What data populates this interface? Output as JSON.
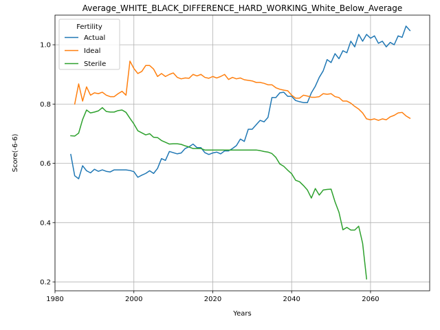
{
  "chart_data": {
    "type": "line",
    "title": "Average_WHITE_BLACK_DIFFERENCE_HARD_WORKING_White_Below_Average",
    "xlabel": "Years",
    "ylabel": "Score(-6-6)",
    "xlim": [
      1980,
      2075
    ],
    "ylim": [
      0.17,
      1.1
    ],
    "xticks": [
      1980,
      2000,
      2020,
      2040,
      2060
    ],
    "yticks": [
      0.2,
      0.4,
      0.6,
      0.8,
      1.0
    ],
    "xtick_labels": [
      "1980",
      "2000",
      "2020",
      "2040",
      "2060"
    ],
    "ytick_labels": [
      "0.2",
      "0.4",
      "0.6",
      "0.8",
      "1.0"
    ],
    "grid": true,
    "legend": {
      "title": "Fertility",
      "placement": "top-left"
    },
    "series": [
      {
        "name": "Actual",
        "color": "#1f77b4",
        "x": [
          1984,
          1985,
          1986,
          1987,
          1988,
          1989,
          1990,
          1991,
          1992,
          1993,
          1994,
          1995,
          1996,
          1997,
          1998,
          1999,
          2000,
          2001,
          2002,
          2003,
          2004,
          2005,
          2006,
          2007,
          2008,
          2009,
          2010,
          2011,
          2012,
          2013,
          2014,
          2015,
          2016,
          2017,
          2018,
          2019,
          2020,
          2021,
          2022,
          2023,
          2024,
          2025,
          2026,
          2027,
          2028,
          2029,
          2030,
          2031,
          2032,
          2033,
          2034,
          2035,
          2036,
          2037,
          2038,
          2039,
          2040,
          2041,
          2042,
          2043,
          2044,
          2045,
          2046,
          2047,
          2048,
          2049,
          2050,
          2051,
          2052,
          2053,
          2054,
          2055,
          2056,
          2057,
          2058,
          2059,
          2060,
          2061,
          2062,
          2063,
          2064,
          2065,
          2066,
          2067,
          2068,
          2069,
          2070
        ],
        "y": [
          0.63,
          0.558,
          0.548,
          0.592,
          0.575,
          0.568,
          0.58,
          0.573,
          0.578,
          0.573,
          0.571,
          0.578,
          0.578,
          0.578,
          0.578,
          0.576,
          0.572,
          0.553,
          0.56,
          0.566,
          0.575,
          0.566,
          0.583,
          0.616,
          0.61,
          0.64,
          0.636,
          0.632,
          0.635,
          0.65,
          0.656,
          0.665,
          0.653,
          0.653,
          0.636,
          0.63,
          0.635,
          0.638,
          0.632,
          0.642,
          0.642,
          0.65,
          0.66,
          0.682,
          0.674,
          0.715,
          0.715,
          0.73,
          0.745,
          0.74,
          0.755,
          0.822,
          0.822,
          0.838,
          0.84,
          0.826,
          0.826,
          0.812,
          0.808,
          0.805,
          0.805,
          0.838,
          0.86,
          0.89,
          0.912,
          0.95,
          0.94,
          0.97,
          0.953,
          0.98,
          0.973,
          1.012,
          0.993,
          1.035,
          1.012,
          1.035,
          1.022,
          1.03,
          1.005,
          1.012,
          0.993,
          1.008,
          1.0,
          1.03,
          1.025,
          1.063,
          1.048
        ]
      },
      {
        "name": "Ideal",
        "color": "#ff7f0e",
        "x": [
          1985,
          1986,
          1987,
          1988,
          1989,
          1990,
          1991,
          1992,
          1993,
          1994,
          1995,
          1996,
          1997,
          1998,
          1999,
          2000,
          2001,
          2002,
          2003,
          2004,
          2005,
          2006,
          2007,
          2008,
          2009,
          2010,
          2011,
          2012,
          2013,
          2014,
          2015,
          2016,
          2017,
          2018,
          2019,
          2020,
          2021,
          2022,
          2023,
          2024,
          2025,
          2026,
          2027,
          2028,
          2029,
          2030,
          2031,
          2032,
          2033,
          2034,
          2035,
          2036,
          2037,
          2038,
          2039,
          2040,
          2041,
          2042,
          2043,
          2044,
          2045,
          2046,
          2047,
          2048,
          2049,
          2050,
          2051,
          2052,
          2053,
          2054,
          2055,
          2056,
          2057,
          2058,
          2059,
          2060,
          2061,
          2062,
          2063,
          2064,
          2065,
          2066,
          2067,
          2068,
          2069,
          2070
        ],
        "y": [
          0.8,
          0.868,
          0.81,
          0.858,
          0.83,
          0.838,
          0.835,
          0.84,
          0.83,
          0.825,
          0.825,
          0.835,
          0.843,
          0.83,
          0.945,
          0.92,
          0.903,
          0.91,
          0.93,
          0.93,
          0.918,
          0.893,
          0.903,
          0.893,
          0.9,
          0.905,
          0.89,
          0.885,
          0.888,
          0.887,
          0.9,
          0.895,
          0.9,
          0.89,
          0.887,
          0.893,
          0.888,
          0.893,
          0.9,
          0.883,
          0.89,
          0.885,
          0.888,
          0.882,
          0.88,
          0.878,
          0.873,
          0.873,
          0.87,
          0.865,
          0.865,
          0.855,
          0.85,
          0.847,
          0.845,
          0.83,
          0.82,
          0.82,
          0.83,
          0.827,
          0.823,
          0.823,
          0.825,
          0.835,
          0.833,
          0.835,
          0.825,
          0.822,
          0.81,
          0.81,
          0.803,
          0.792,
          0.783,
          0.77,
          0.75,
          0.747,
          0.75,
          0.745,
          0.75,
          0.747,
          0.757,
          0.762,
          0.77,
          0.772,
          0.76,
          0.752
        ]
      },
      {
        "name": "Sterile",
        "color": "#2ca02c",
        "x": [
          1984,
          1985,
          1986,
          1987,
          1988,
          1989,
          1990,
          1991,
          1992,
          1993,
          1994,
          1995,
          1996,
          1997,
          1998,
          1999,
          2000,
          2001,
          2002,
          2003,
          2004,
          2005,
          2006,
          2007,
          2008,
          2009,
          2010,
          2011,
          2012,
          2013,
          2014,
          2015,
          2016,
          2017,
          2018,
          2019,
          2020,
          2021,
          2022,
          2023,
          2024,
          2025,
          2026,
          2027,
          2028,
          2029,
          2030,
          2031,
          2032,
          2033,
          2034,
          2035,
          2036,
          2037,
          2038,
          2039,
          2040,
          2041,
          2042,
          2043,
          2044,
          2045,
          2046,
          2047,
          2048,
          2049,
          2050,
          2051,
          2052,
          2053,
          2054,
          2055,
          2056,
          2057,
          2058,
          2059
        ],
        "y": [
          0.693,
          0.692,
          0.702,
          0.748,
          0.78,
          0.77,
          0.773,
          0.777,
          0.788,
          0.775,
          0.773,
          0.773,
          0.778,
          0.78,
          0.772,
          0.752,
          0.733,
          0.71,
          0.703,
          0.696,
          0.7,
          0.688,
          0.687,
          0.677,
          0.671,
          0.665,
          0.666,
          0.666,
          0.664,
          0.659,
          0.655,
          0.65,
          0.65,
          0.65,
          0.645,
          0.645,
          0.645,
          0.645,
          0.645,
          0.645,
          0.645,
          0.645,
          0.645,
          0.645,
          0.645,
          0.645,
          0.645,
          0.645,
          0.643,
          0.64,
          0.638,
          0.633,
          0.62,
          0.598,
          0.59,
          0.577,
          0.565,
          0.543,
          0.538,
          0.525,
          0.51,
          0.483,
          0.515,
          0.493,
          0.51,
          0.512,
          0.513,
          0.47,
          0.435,
          0.376,
          0.384,
          0.375,
          0.375,
          0.388,
          0.33,
          0.21
        ]
      }
    ]
  }
}
